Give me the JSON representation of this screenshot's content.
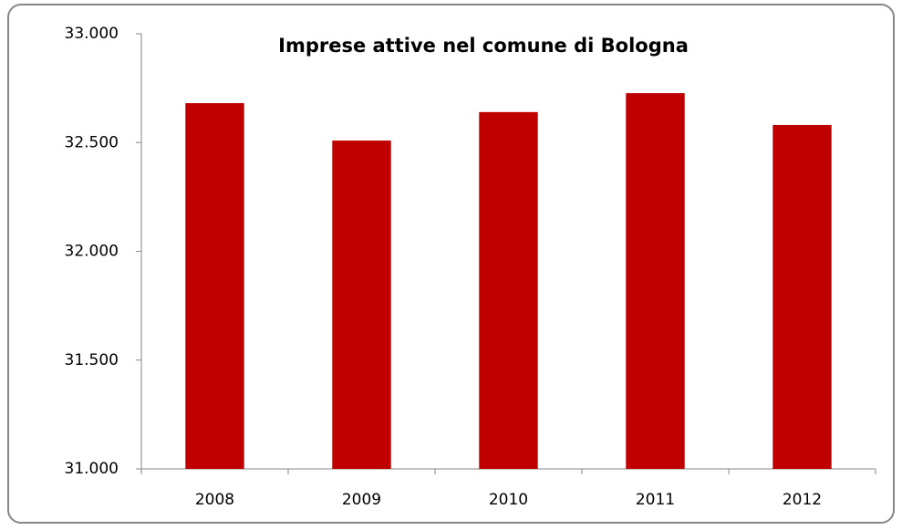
{
  "chart_data": {
    "type": "bar",
    "title": "Imprese attive nel comune di Bologna",
    "categories": [
      "2008",
      "2009",
      "2010",
      "2011",
      "2012"
    ],
    "values": [
      32681,
      32509,
      32640,
      32727,
      32581
    ],
    "color": "#c00000",
    "ylim": [
      31000,
      33000
    ],
    "yticks": [
      {
        "value": 31000,
        "label": "31.000"
      },
      {
        "value": 31500,
        "label": "31.500"
      },
      {
        "value": 32000,
        "label": "32.000"
      },
      {
        "value": 32500,
        "label": "32.500"
      },
      {
        "value": 33000,
        "label": "33.000"
      }
    ],
    "grid": false
  }
}
